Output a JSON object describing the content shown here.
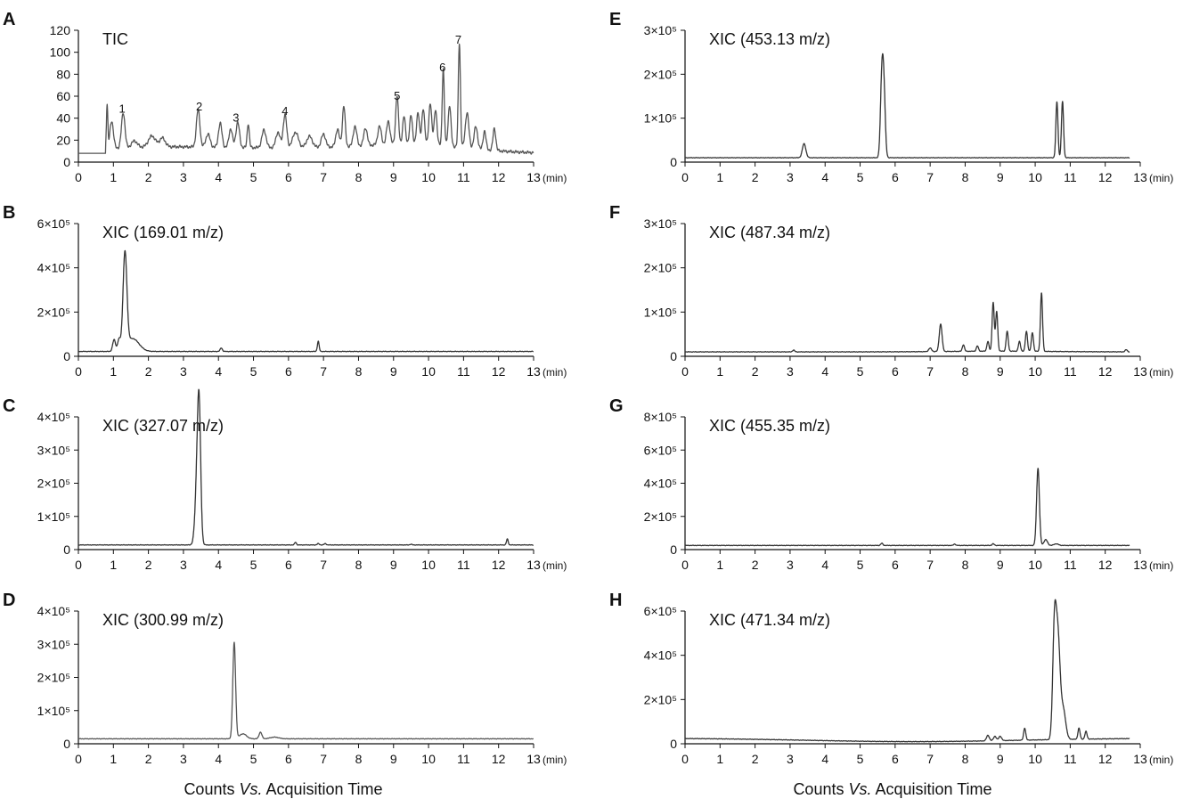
{
  "figure": {
    "x_axis_caption_prefix": "Counts ",
    "x_axis_caption_italic": "Vs.",
    "x_axis_caption_suffix": " Acquisition Time"
  },
  "chart_data": [
    {
      "type": "line",
      "panel": "A",
      "title": "TIC",
      "xlabel_unit": "(min)",
      "xlim": [
        0,
        13
      ],
      "ylim": [
        0,
        120
      ],
      "x_ticks": [
        0,
        1,
        2,
        3,
        4,
        5,
        6,
        7,
        8,
        9,
        10,
        11,
        12,
        13
      ],
      "y_ticks": [
        {
          "v": 0,
          "t": "0"
        },
        {
          "v": 20,
          "t": "20"
        },
        {
          "v": 40,
          "t": "40"
        },
        {
          "v": 60,
          "t": "60"
        },
        {
          "v": 80,
          "t": "80"
        },
        {
          "v": 100,
          "t": "100"
        },
        {
          "v": 120,
          "t": "120"
        }
      ],
      "baseline": 8,
      "trace_end": 13,
      "peak_labels": [
        {
          "x": 1.25,
          "y": 40,
          "text": "1"
        },
        {
          "x": 3.45,
          "y": 42,
          "text": "2"
        },
        {
          "x": 4.5,
          "y": 32,
          "text": "3"
        },
        {
          "x": 5.9,
          "y": 38,
          "text": "4"
        },
        {
          "x": 9.1,
          "y": 52,
          "text": "5"
        },
        {
          "x": 10.4,
          "y": 78,
          "text": "6"
        },
        {
          "x": 10.85,
          "y": 103,
          "text": "7"
        }
      ],
      "peaks": [
        [
          0.82,
          48,
          0.02
        ],
        [
          0.95,
          33,
          0.05
        ],
        [
          1.28,
          40,
          0.05
        ],
        [
          1.6,
          14,
          0.08
        ],
        [
          2.1,
          18,
          0.1
        ],
        [
          2.4,
          16,
          0.08
        ],
        [
          3.42,
          42,
          0.05
        ],
        [
          3.7,
          20,
          0.06
        ],
        [
          4.05,
          30,
          0.05
        ],
        [
          4.35,
          25,
          0.05
        ],
        [
          4.55,
          31,
          0.05
        ],
        [
          4.85,
          30,
          0.03
        ],
        [
          5.3,
          24,
          0.06
        ],
        [
          5.7,
          22,
          0.06
        ],
        [
          5.9,
          38,
          0.05
        ],
        [
          6.2,
          22,
          0.08
        ],
        [
          6.6,
          18,
          0.08
        ],
        [
          7.0,
          20,
          0.06
        ],
        [
          7.4,
          24,
          0.05
        ],
        [
          7.58,
          45,
          0.04
        ],
        [
          7.9,
          26,
          0.05
        ],
        [
          8.2,
          24,
          0.05
        ],
        [
          8.6,
          25,
          0.05
        ],
        [
          8.85,
          29,
          0.05
        ],
        [
          9.1,
          52,
          0.04
        ],
        [
          9.3,
          33,
          0.04
        ],
        [
          9.5,
          34,
          0.04
        ],
        [
          9.7,
          37,
          0.04
        ],
        [
          9.85,
          40,
          0.04
        ],
        [
          10.05,
          46,
          0.04
        ],
        [
          10.2,
          40,
          0.04
        ],
        [
          10.42,
          78,
          0.03
        ],
        [
          10.6,
          45,
          0.04
        ],
        [
          10.88,
          103,
          0.03
        ],
        [
          11.1,
          40,
          0.05
        ],
        [
          11.35,
          28,
          0.05
        ],
        [
          11.6,
          25,
          0.04
        ],
        [
          11.88,
          28,
          0.04
        ]
      ],
      "bumps": [
        [
          2.0,
          14,
          1.8
        ],
        [
          6.5,
          14,
          2.5
        ],
        [
          9.8,
          16,
          1.4
        ]
      ]
    },
    {
      "type": "line",
      "panel": "B",
      "title": "XIC (169.01 m/z)",
      "xlabel_unit": "(min)",
      "xlim": [
        0,
        13
      ],
      "ylim": [
        0,
        6
      ],
      "x_ticks": [
        0,
        1,
        2,
        3,
        4,
        5,
        6,
        7,
        8,
        9,
        10,
        11,
        12,
        13
      ],
      "y_ticks": [
        {
          "v": 0,
          "t": "0"
        },
        {
          "v": 2,
          "t": "2×10⁵"
        },
        {
          "v": 4,
          "t": "4×10⁵"
        },
        {
          "v": 6,
          "t": "6×10⁵"
        }
      ],
      "baseline": 0.22,
      "trace_end": 13,
      "peaks": [
        [
          1.02,
          0.75,
          0.04
        ],
        [
          1.16,
          0.72,
          0.04
        ],
        [
          1.33,
          4.5,
          0.055
        ],
        [
          1.55,
          0.8,
          0.18
        ],
        [
          4.08,
          0.38,
          0.03
        ],
        [
          6.85,
          0.68,
          0.025
        ]
      ],
      "bumps": []
    },
    {
      "type": "line",
      "panel": "C",
      "title": "XIC (327.07 m/z)",
      "xlabel_unit": "(min)",
      "xlim": [
        0,
        13
      ],
      "ylim": [
        0,
        4
      ],
      "x_ticks": [
        0,
        1,
        2,
        3,
        4,
        5,
        6,
        7,
        8,
        9,
        10,
        11,
        12,
        13
      ],
      "y_ticks": [
        {
          "v": 0,
          "t": "0"
        },
        {
          "v": 1,
          "t": "1×10⁵"
        },
        {
          "v": 2,
          "t": "2×10⁵"
        },
        {
          "v": 3,
          "t": "3×10⁵"
        },
        {
          "v": 4,
          "t": "4×10⁵"
        }
      ],
      "baseline": 0.14,
      "trace_end": 13,
      "peaks": [
        [
          3.45,
          3.25,
          0.045
        ],
        [
          3.4,
          2.2,
          0.06
        ],
        [
          6.2,
          0.22,
          0.025
        ],
        [
          6.85,
          0.18,
          0.03
        ],
        [
          7.05,
          0.18,
          0.03
        ],
        [
          9.5,
          0.16,
          0.03
        ],
        [
          12.25,
          0.32,
          0.025
        ]
      ],
      "bumps": []
    },
    {
      "type": "line",
      "panel": "D",
      "title": "XIC (300.99 m/z)",
      "xlabel_unit": "(min)",
      "xlim": [
        0,
        13
      ],
      "ylim": [
        0,
        4
      ],
      "x_ticks": [
        0,
        1,
        2,
        3,
        4,
        5,
        6,
        7,
        8,
        9,
        10,
        11,
        12,
        13
      ],
      "y_ticks": [
        {
          "v": 0,
          "t": "0"
        },
        {
          "v": 1,
          "t": "1×10⁵"
        },
        {
          "v": 2,
          "t": "2×10⁵"
        },
        {
          "v": 3,
          "t": "3×10⁵"
        },
        {
          "v": 4,
          "t": "4×10⁵"
        }
      ],
      "baseline": 0.15,
      "trace_end": 13,
      "peaks": [
        [
          4.45,
          3.05,
          0.04
        ],
        [
          4.7,
          0.3,
          0.1
        ],
        [
          5.2,
          0.35,
          0.04
        ],
        [
          5.6,
          0.2,
          0.12
        ]
      ],
      "bumps": []
    },
    {
      "type": "line",
      "panel": "E",
      "title": "XIC (453.13 m/z)",
      "xlabel_unit": "(min)",
      "xlim": [
        0,
        13
      ],
      "ylim": [
        0,
        3
      ],
      "x_ticks": [
        0,
        1,
        2,
        3,
        4,
        5,
        6,
        7,
        8,
        9,
        10,
        11,
        12,
        13
      ],
      "y_ticks": [
        {
          "v": 0,
          "t": "0"
        },
        {
          "v": 1,
          "t": "1×10⁵"
        },
        {
          "v": 2,
          "t": "2×10⁵"
        },
        {
          "v": 3,
          "t": "3×10⁵"
        }
      ],
      "baseline": 0.1,
      "trace_end": 12.7,
      "peaks": [
        [
          3.4,
          0.42,
          0.05
        ],
        [
          5.62,
          1.82,
          0.04
        ],
        [
          5.68,
          1.5,
          0.04
        ],
        [
          10.62,
          1.37,
          0.03
        ],
        [
          10.78,
          1.38,
          0.03
        ]
      ],
      "bumps": []
    },
    {
      "type": "line",
      "panel": "F",
      "title": "XIC (487.34 m/z)",
      "xlabel_unit": "(min)",
      "xlim": [
        0,
        13
      ],
      "ylim": [
        0,
        3
      ],
      "x_ticks": [
        0,
        1,
        2,
        3,
        4,
        5,
        6,
        7,
        8,
        9,
        10,
        11,
        12,
        13
      ],
      "y_ticks": [
        {
          "v": 0,
          "t": "0"
        },
        {
          "v": 1,
          "t": "1×10⁵"
        },
        {
          "v": 2,
          "t": "2×10⁵"
        },
        {
          "v": 3,
          "t": "3×10⁵"
        }
      ],
      "baseline": 0.1,
      "trace_end": 12.7,
      "peaks": [
        [
          3.1,
          0.14,
          0.03
        ],
        [
          7.0,
          0.18,
          0.04
        ],
        [
          7.3,
          0.72,
          0.04
        ],
        [
          7.95,
          0.25,
          0.03
        ],
        [
          8.35,
          0.22,
          0.03
        ],
        [
          8.65,
          0.32,
          0.03
        ],
        [
          8.8,
          1.2,
          0.03
        ],
        [
          8.9,
          1.0,
          0.03
        ],
        [
          9.2,
          0.55,
          0.03
        ],
        [
          9.55,
          0.32,
          0.03
        ],
        [
          9.75,
          0.55,
          0.03
        ],
        [
          9.92,
          0.52,
          0.03
        ],
        [
          10.18,
          1.42,
          0.03
        ],
        [
          12.6,
          0.15,
          0.03
        ]
      ],
      "bumps": [
        [
          9.0,
          0.12,
          1.5
        ]
      ]
    },
    {
      "type": "line",
      "panel": "G",
      "title": "XIC (455.35 m/z)",
      "xlabel_unit": "(min)",
      "xlim": [
        0,
        13
      ],
      "ylim": [
        0,
        8
      ],
      "x_ticks": [
        0,
        1,
        2,
        3,
        4,
        5,
        6,
        7,
        8,
        9,
        10,
        11,
        12,
        13
      ],
      "y_ticks": [
        {
          "v": 0,
          "t": "0"
        },
        {
          "v": 2,
          "t": "2×10⁵"
        },
        {
          "v": 4,
          "t": "4×10⁵"
        },
        {
          "v": 6,
          "t": "6×10⁵"
        },
        {
          "v": 8,
          "t": "8×10⁵"
        }
      ],
      "baseline": 0.25,
      "trace_end": 12.7,
      "peaks": [
        [
          5.62,
          0.38,
          0.03
        ],
        [
          7.7,
          0.33,
          0.03
        ],
        [
          8.8,
          0.35,
          0.03
        ],
        [
          10.08,
          4.9,
          0.04
        ],
        [
          10.3,
          0.6,
          0.05
        ],
        [
          10.6,
          0.35,
          0.06
        ]
      ],
      "bumps": []
    },
    {
      "type": "line",
      "panel": "H",
      "title": "XIC (471.34 m/z)",
      "xlabel_unit": "(min)",
      "xlim": [
        0,
        13
      ],
      "ylim": [
        0,
        6
      ],
      "x_ticks": [
        0,
        1,
        2,
        3,
        4,
        5,
        6,
        7,
        8,
        9,
        10,
        11,
        12,
        13
      ],
      "y_ticks": [
        {
          "v": 0,
          "t": "0"
        },
        {
          "v": 2,
          "t": "2×10⁵"
        },
        {
          "v": 4,
          "t": "4×10⁵"
        },
        {
          "v": 6,
          "t": "6×10⁵"
        }
      ],
      "baseline": 0.25,
      "trace_end": 12.7,
      "peaks": [
        [
          8.65,
          0.5,
          0.04
        ],
        [
          8.85,
          0.45,
          0.04
        ],
        [
          9.0,
          0.45,
          0.04
        ],
        [
          9.7,
          0.8,
          0.03
        ],
        [
          10.55,
          5.1,
          0.05
        ],
        [
          10.65,
          4.7,
          0.06
        ],
        [
          10.8,
          1.6,
          0.07
        ],
        [
          11.25,
          0.75,
          0.03
        ],
        [
          11.45,
          0.6,
          0.03
        ]
      ],
      "bumps": [
        [
          6.5,
          0.06,
          3.0
        ]
      ]
    }
  ]
}
